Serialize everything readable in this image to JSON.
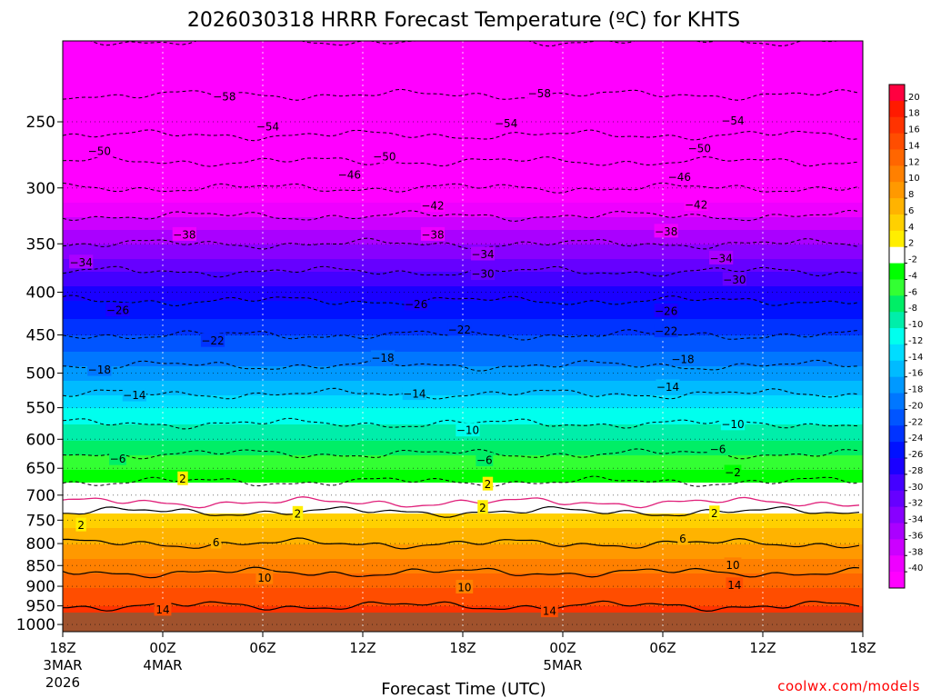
{
  "chart_data": {
    "type": "heatmap",
    "title": "2026030318 HRRR Forecast Temperature (ºC) for KHTS",
    "xlabel": "Forecast Time (UTC)",
    "ylabel": "",
    "credit": "coolwx.com/models",
    "y_axis": {
      "scale": "log-pressure",
      "range": [
        1020,
        200
      ],
      "tick_labels": [
        "250",
        "300",
        "350",
        "400",
        "450",
        "500",
        "550",
        "600",
        "650",
        "700",
        "750",
        "800",
        "850",
        "900",
        "950",
        "1000"
      ]
    },
    "x_axis": {
      "range_hours": [
        0,
        48
      ],
      "ticks": [
        {
          "hour": 0,
          "time": "18Z",
          "date": "3MAR",
          "year": "2026"
        },
        {
          "hour": 6,
          "time": "00Z",
          "date": "4MAR",
          "year": ""
        },
        {
          "hour": 12,
          "time": "06Z",
          "date": "",
          "year": ""
        },
        {
          "hour": 18,
          "time": "12Z",
          "date": "",
          "year": ""
        },
        {
          "hour": 24,
          "time": "18Z",
          "date": "",
          "year": ""
        },
        {
          "hour": 30,
          "time": "00Z",
          "date": "5MAR",
          "year": ""
        },
        {
          "hour": 36,
          "time": "06Z",
          "date": "",
          "year": ""
        },
        {
          "hour": 42,
          "time": "12Z",
          "date": "",
          "year": ""
        },
        {
          "hour": 48,
          "time": "18Z",
          "date": "",
          "year": ""
        }
      ]
    },
    "colorbar": {
      "labels": [
        "20",
        "18",
        "16",
        "14",
        "12",
        "10",
        "8",
        "6",
        "4",
        "2",
        "-2",
        "-4",
        "-6",
        "-8",
        "-10",
        "-12",
        "-14",
        "-16",
        "-18",
        "-20",
        "-22",
        "-24",
        "-26",
        "-28",
        "-30",
        "-32",
        "-34",
        "-36",
        "-38",
        "-40"
      ],
      "colors": [
        "#ff0040",
        "#ff1a00",
        "#ff3300",
        "#ff4d00",
        "#ff6600",
        "#ff8000",
        "#ff9900",
        "#ffb300",
        "#ffd000",
        "#ffee00",
        "#ffffff",
        "#00ff00",
        "#33ff33",
        "#00ee66",
        "#00eeaa",
        "#00ffee",
        "#00ddff",
        "#00bbff",
        "#0099ff",
        "#0077ff",
        "#0055ff",
        "#0033ff",
        "#0011ff",
        "#1a00ff",
        "#4400ff",
        "#6600ff",
        "#8800ff",
        "#aa00ff",
        "#cc00ff",
        "#ee00ff",
        "#ff00ff"
      ]
    },
    "levels": [
      {
        "p": 1020,
        "t": 14
      },
      {
        "p": 990,
        "t": 15
      },
      {
        "p": 950,
        "t": 14
      },
      {
        "p": 900,
        "t": 12
      },
      {
        "p": 850,
        "t": 9
      },
      {
        "p": 800,
        "t": 6
      },
      {
        "p": 750,
        "t": 3
      },
      {
        "p": 700,
        "t": 0
      },
      {
        "p": 650,
        "t": -4
      },
      {
        "p": 600,
        "t": -8
      },
      {
        "p": 550,
        "t": -12
      },
      {
        "p": 500,
        "t": -17
      },
      {
        "p": 450,
        "t": -22
      },
      {
        "p": 400,
        "t": -27
      },
      {
        "p": 350,
        "t": -34
      },
      {
        "p": 300,
        "t": -42
      },
      {
        "p": 250,
        "t": -52
      },
      {
        "p": 200,
        "t": -58
      }
    ],
    "contour_labels": [
      {
        "text": "-58",
        "hour": 9.7,
        "p": 233
      },
      {
        "text": "-58",
        "hour": 28.6,
        "p": 231
      },
      {
        "text": "-54",
        "hour": 12.3,
        "p": 253
      },
      {
        "text": "-54",
        "hour": 26.6,
        "p": 251
      },
      {
        "text": "-54",
        "hour": 40.2,
        "p": 249
      },
      {
        "text": "-50",
        "hour": 2.2,
        "p": 271
      },
      {
        "text": "-50",
        "hour": 19.3,
        "p": 275
      },
      {
        "text": "-50",
        "hour": 38.2,
        "p": 269
      },
      {
        "text": "-46",
        "hour": 17.2,
        "p": 289
      },
      {
        "text": "-46",
        "hour": 37.0,
        "p": 291
      },
      {
        "text": "-42",
        "hour": 22.2,
        "p": 315
      },
      {
        "text": "-42",
        "hour": 38.0,
        "p": 314
      },
      {
        "text": "-38",
        "hour": 7.3,
        "p": 341
      },
      {
        "text": "-38",
        "hour": 22.2,
        "p": 341
      },
      {
        "text": "-38",
        "hour": 36.2,
        "p": 338
      },
      {
        "text": "-34",
        "hour": 1.1,
        "p": 368
      },
      {
        "text": "-34",
        "hour": 25.2,
        "p": 360
      },
      {
        "text": "-34",
        "hour": 39.5,
        "p": 364
      },
      {
        "text": "-30",
        "hour": 25.2,
        "p": 380
      },
      {
        "text": "-30",
        "hour": 40.3,
        "p": 386
      },
      {
        "text": "-26",
        "hour": 3.3,
        "p": 420
      },
      {
        "text": "-26",
        "hour": 21.2,
        "p": 413
      },
      {
        "text": "-26",
        "hour": 36.2,
        "p": 421
      },
      {
        "text": "-22",
        "hour": 9.0,
        "p": 457
      },
      {
        "text": "-22",
        "hour": 23.8,
        "p": 443
      },
      {
        "text": "-22",
        "hour": 36.2,
        "p": 445
      },
      {
        "text": "-18",
        "hour": 2.2,
        "p": 495
      },
      {
        "text": "-18",
        "hour": 19.2,
        "p": 479
      },
      {
        "text": "-18",
        "hour": 37.2,
        "p": 481
      },
      {
        "text": "-14",
        "hour": 4.3,
        "p": 531
      },
      {
        "text": "-14",
        "hour": 21.1,
        "p": 529
      },
      {
        "text": "-14",
        "hour": 36.3,
        "p": 519
      },
      {
        "text": "-10",
        "hour": 24.3,
        "p": 585
      },
      {
        "text": "-10",
        "hour": 40.2,
        "p": 575
      },
      {
        "text": "-6",
        "hour": 3.3,
        "p": 633
      },
      {
        "text": "-6",
        "hour": 25.3,
        "p": 635
      },
      {
        "text": "-6",
        "hour": 39.3,
        "p": 616
      },
      {
        "text": "2",
        "hour": 7.2,
        "p": 669
      },
      {
        "text": "2",
        "hour": 25.5,
        "p": 679
      },
      {
        "text": "-2",
        "hour": 40.2,
        "p": 657
      },
      {
        "text": "2",
        "hour": 1.1,
        "p": 760
      },
      {
        "text": "2",
        "hour": 14.1,
        "p": 736
      },
      {
        "text": "2",
        "hour": 25.2,
        "p": 724
      },
      {
        "text": "2",
        "hour": 39.1,
        "p": 735
      },
      {
        "text": "6",
        "hour": 9.2,
        "p": 797
      },
      {
        "text": "6",
        "hour": 37.2,
        "p": 789
      },
      {
        "text": "10",
        "hour": 12.1,
        "p": 879
      },
      {
        "text": "10",
        "hour": 24.1,
        "p": 902
      },
      {
        "text": "10",
        "hour": 40.2,
        "p": 848
      },
      {
        "text": "14",
        "hour": 6.0,
        "p": 959
      },
      {
        "text": "14",
        "hour": 29.2,
        "p": 963
      },
      {
        "text": "14",
        "hour": 40.3,
        "p": 896
      }
    ]
  }
}
